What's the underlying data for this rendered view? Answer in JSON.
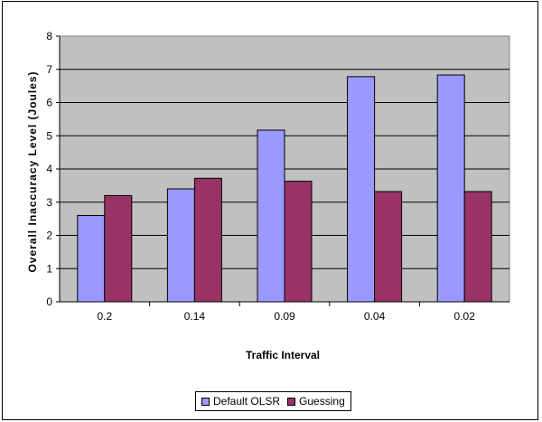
{
  "chart_data": {
    "type": "bar",
    "title": "",
    "xlabel": "Traffic Interval",
    "ylabel": "Overall Inaccuracy Level (Joules)",
    "categories": [
      "0.2",
      "0.14",
      "0.09",
      "0.04",
      "0.02"
    ],
    "series": [
      {
        "name": "Default OLSR",
        "values": [
          2.6,
          3.4,
          5.17,
          6.78,
          6.83
        ],
        "color": "#9999ff"
      },
      {
        "name": "Guessing",
        "values": [
          3.2,
          3.72,
          3.63,
          3.32,
          3.32
        ],
        "color": "#993366"
      }
    ],
    "ylim": [
      0,
      8
    ],
    "yticks": [
      "0",
      "1",
      "2",
      "3",
      "4",
      "5",
      "6",
      "7",
      "8"
    ],
    "grid": true,
    "plot_background": "#c0c0c0",
    "legend_position": "bottom"
  }
}
